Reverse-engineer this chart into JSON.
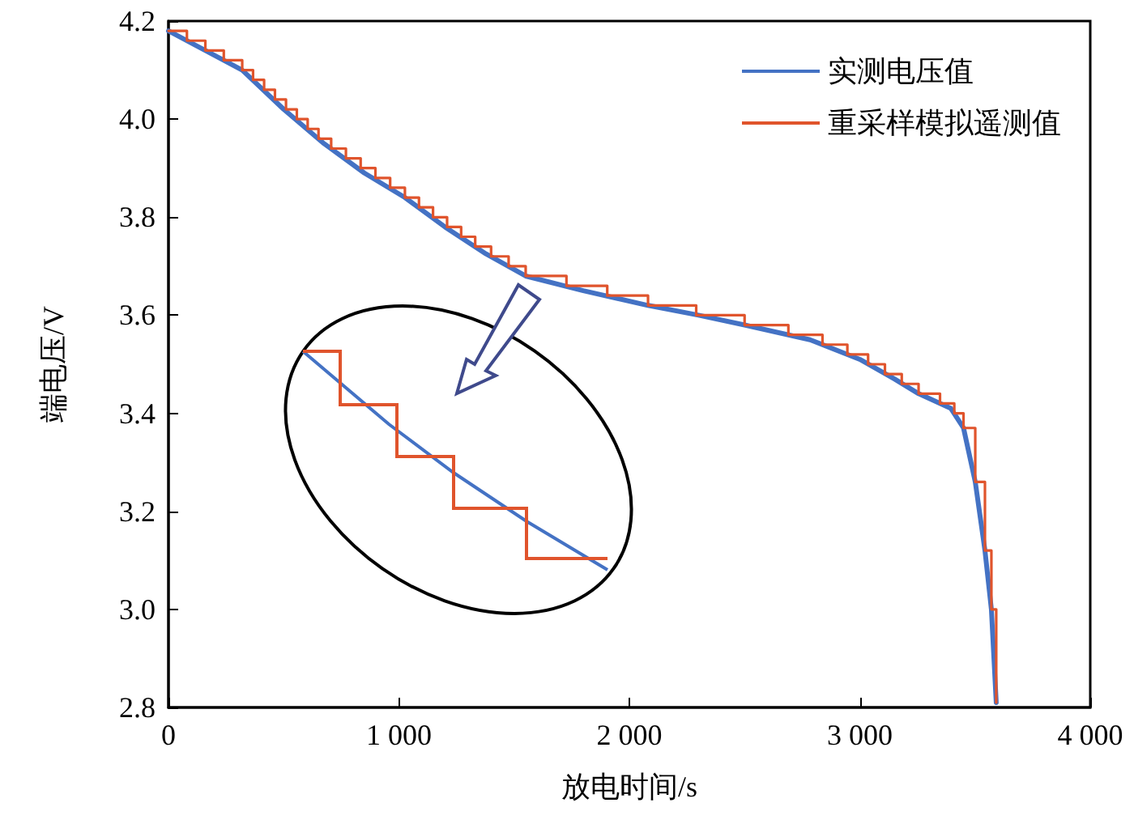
{
  "chart_data": {
    "type": "line",
    "xlabel": "放电时间/s",
    "ylabel": "端电压/V",
    "xlim": [
      0,
      4000
    ],
    "ylim": [
      2.8,
      4.2
    ],
    "xticks": [
      0,
      {
        "value": 1000,
        "label": "1 000"
      },
      {
        "value": 2000,
        "label": "2 000"
      },
      {
        "value": 3000,
        "label": "3 000"
      },
      {
        "value": 4000,
        "label": "4 000"
      }
    ],
    "yticks": [
      2.8,
      {
        "value": 3,
        "label": "3.0"
      },
      3.2,
      3.4,
      3.6,
      3.8,
      {
        "value": 4,
        "label": "4.0"
      },
      4.2
    ],
    "legend": "top right",
    "grid": false,
    "marker": "none",
    "line_style": "solid",
    "series": [
      {
        "name": "实测电压值",
        "color": "#4472c4",
        "x": [
          0,
          160,
          320,
          500,
          675,
          850,
          1026,
          1200,
          1378,
          1550,
          1800,
          2081,
          2300,
          2500,
          2784,
          3000,
          3150,
          3255,
          3395,
          3450,
          3501,
          3543,
          3571,
          3592
        ],
        "values": [
          4.18,
          4.14,
          4.1,
          4.02,
          3.95,
          3.89,
          3.84,
          3.78,
          3.725,
          3.68,
          3.65,
          3.62,
          3.6,
          3.58,
          3.55,
          3.51,
          3.47,
          3.44,
          3.41,
          3.37,
          3.26,
          3.12,
          3.0,
          2.81
        ]
      },
      {
        "name": "重采样模拟遥测值",
        "type": "step",
        "color": "#e0542c",
        "x": [
          0,
          80,
          160,
          240,
          320,
          367,
          415,
          462,
          510,
          557,
          604,
          651,
          706,
          770,
          834,
          898,
          962,
          1026,
          1087,
          1148,
          1209,
          1270,
          1331,
          1400,
          1476,
          1550,
          1727,
          1904,
          2081,
          2290,
          2500,
          2690,
          2838,
          2946,
          3036,
          3109,
          3182,
          3255,
          3348,
          3410,
          3450,
          3501,
          3543,
          3571,
          3592
        ],
        "values": [
          4.18,
          4.16,
          4.14,
          4.12,
          4.1,
          4.08,
          4.06,
          4.04,
          4.02,
          4.0,
          3.98,
          3.96,
          3.94,
          3.92,
          3.9,
          3.88,
          3.86,
          3.84,
          3.82,
          3.8,
          3.78,
          3.76,
          3.74,
          3.72,
          3.7,
          3.68,
          3.66,
          3.64,
          3.62,
          3.6,
          3.58,
          3.56,
          3.54,
          3.52,
          3.5,
          3.48,
          3.46,
          3.44,
          3.42,
          3.4,
          3.37,
          3.26,
          3.12,
          3.0,
          2.81
        ]
      }
    ]
  }
}
